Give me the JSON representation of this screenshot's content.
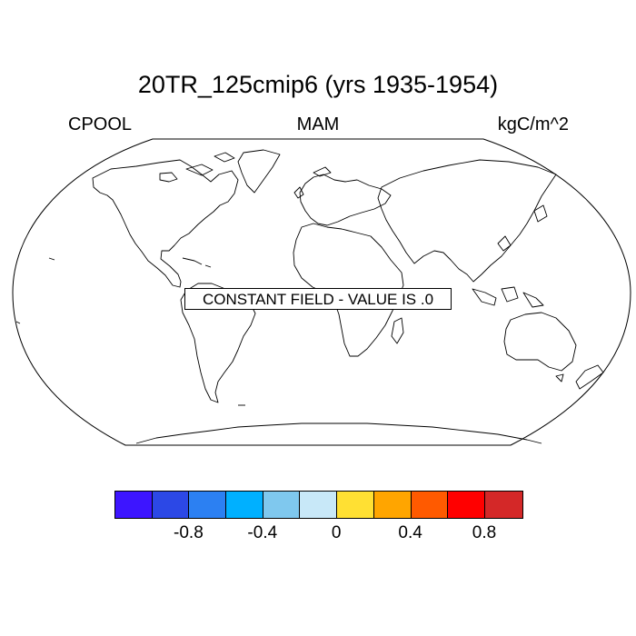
{
  "title": "20TR_125cmip6 (yrs 1935-1954)",
  "left_label": "CPOOL",
  "center_label": "MAM",
  "right_label": "kgC/m^2",
  "message": "CONSTANT FIELD - VALUE IS .0",
  "colorbar": {
    "colors": [
      "#3d15ff",
      "#2c48e6",
      "#2c80f2",
      "#00b0ff",
      "#7fc8ee",
      "#c8e8f8",
      "#ffe033",
      "#ffa500",
      "#ff5a00",
      "#ff0000",
      "#d42828"
    ],
    "ticks": [
      "-0.8",
      "-0.4",
      "0",
      "0.4",
      "0.8"
    ]
  }
}
